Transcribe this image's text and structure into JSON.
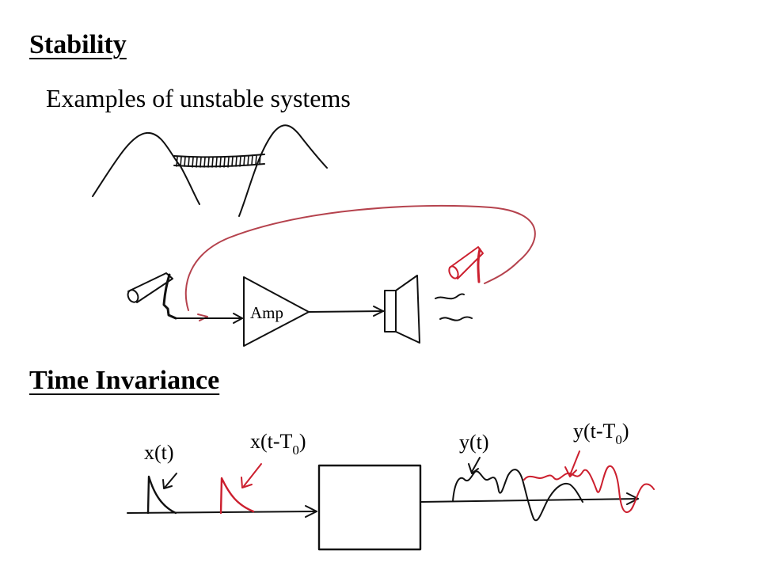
{
  "slide": {
    "stability_heading": "Stability",
    "examples_text": "Examples of unstable systems",
    "amp_label": "Amp",
    "time_invariance_heading": "Time Invariance",
    "labels": {
      "x_t": "x(t)",
      "x_shift_prefix": "x(t-T",
      "x_shift_sub": "0",
      "x_shift_suffix": ")",
      "y_t": "y(t)",
      "y_shift_prefix": "y(t-T",
      "y_shift_sub": "0",
      "y_shift_suffix": ")"
    }
  },
  "colors": {
    "ink": "#111111",
    "red": "#cc1f2e",
    "feedback": "#b5424d"
  }
}
